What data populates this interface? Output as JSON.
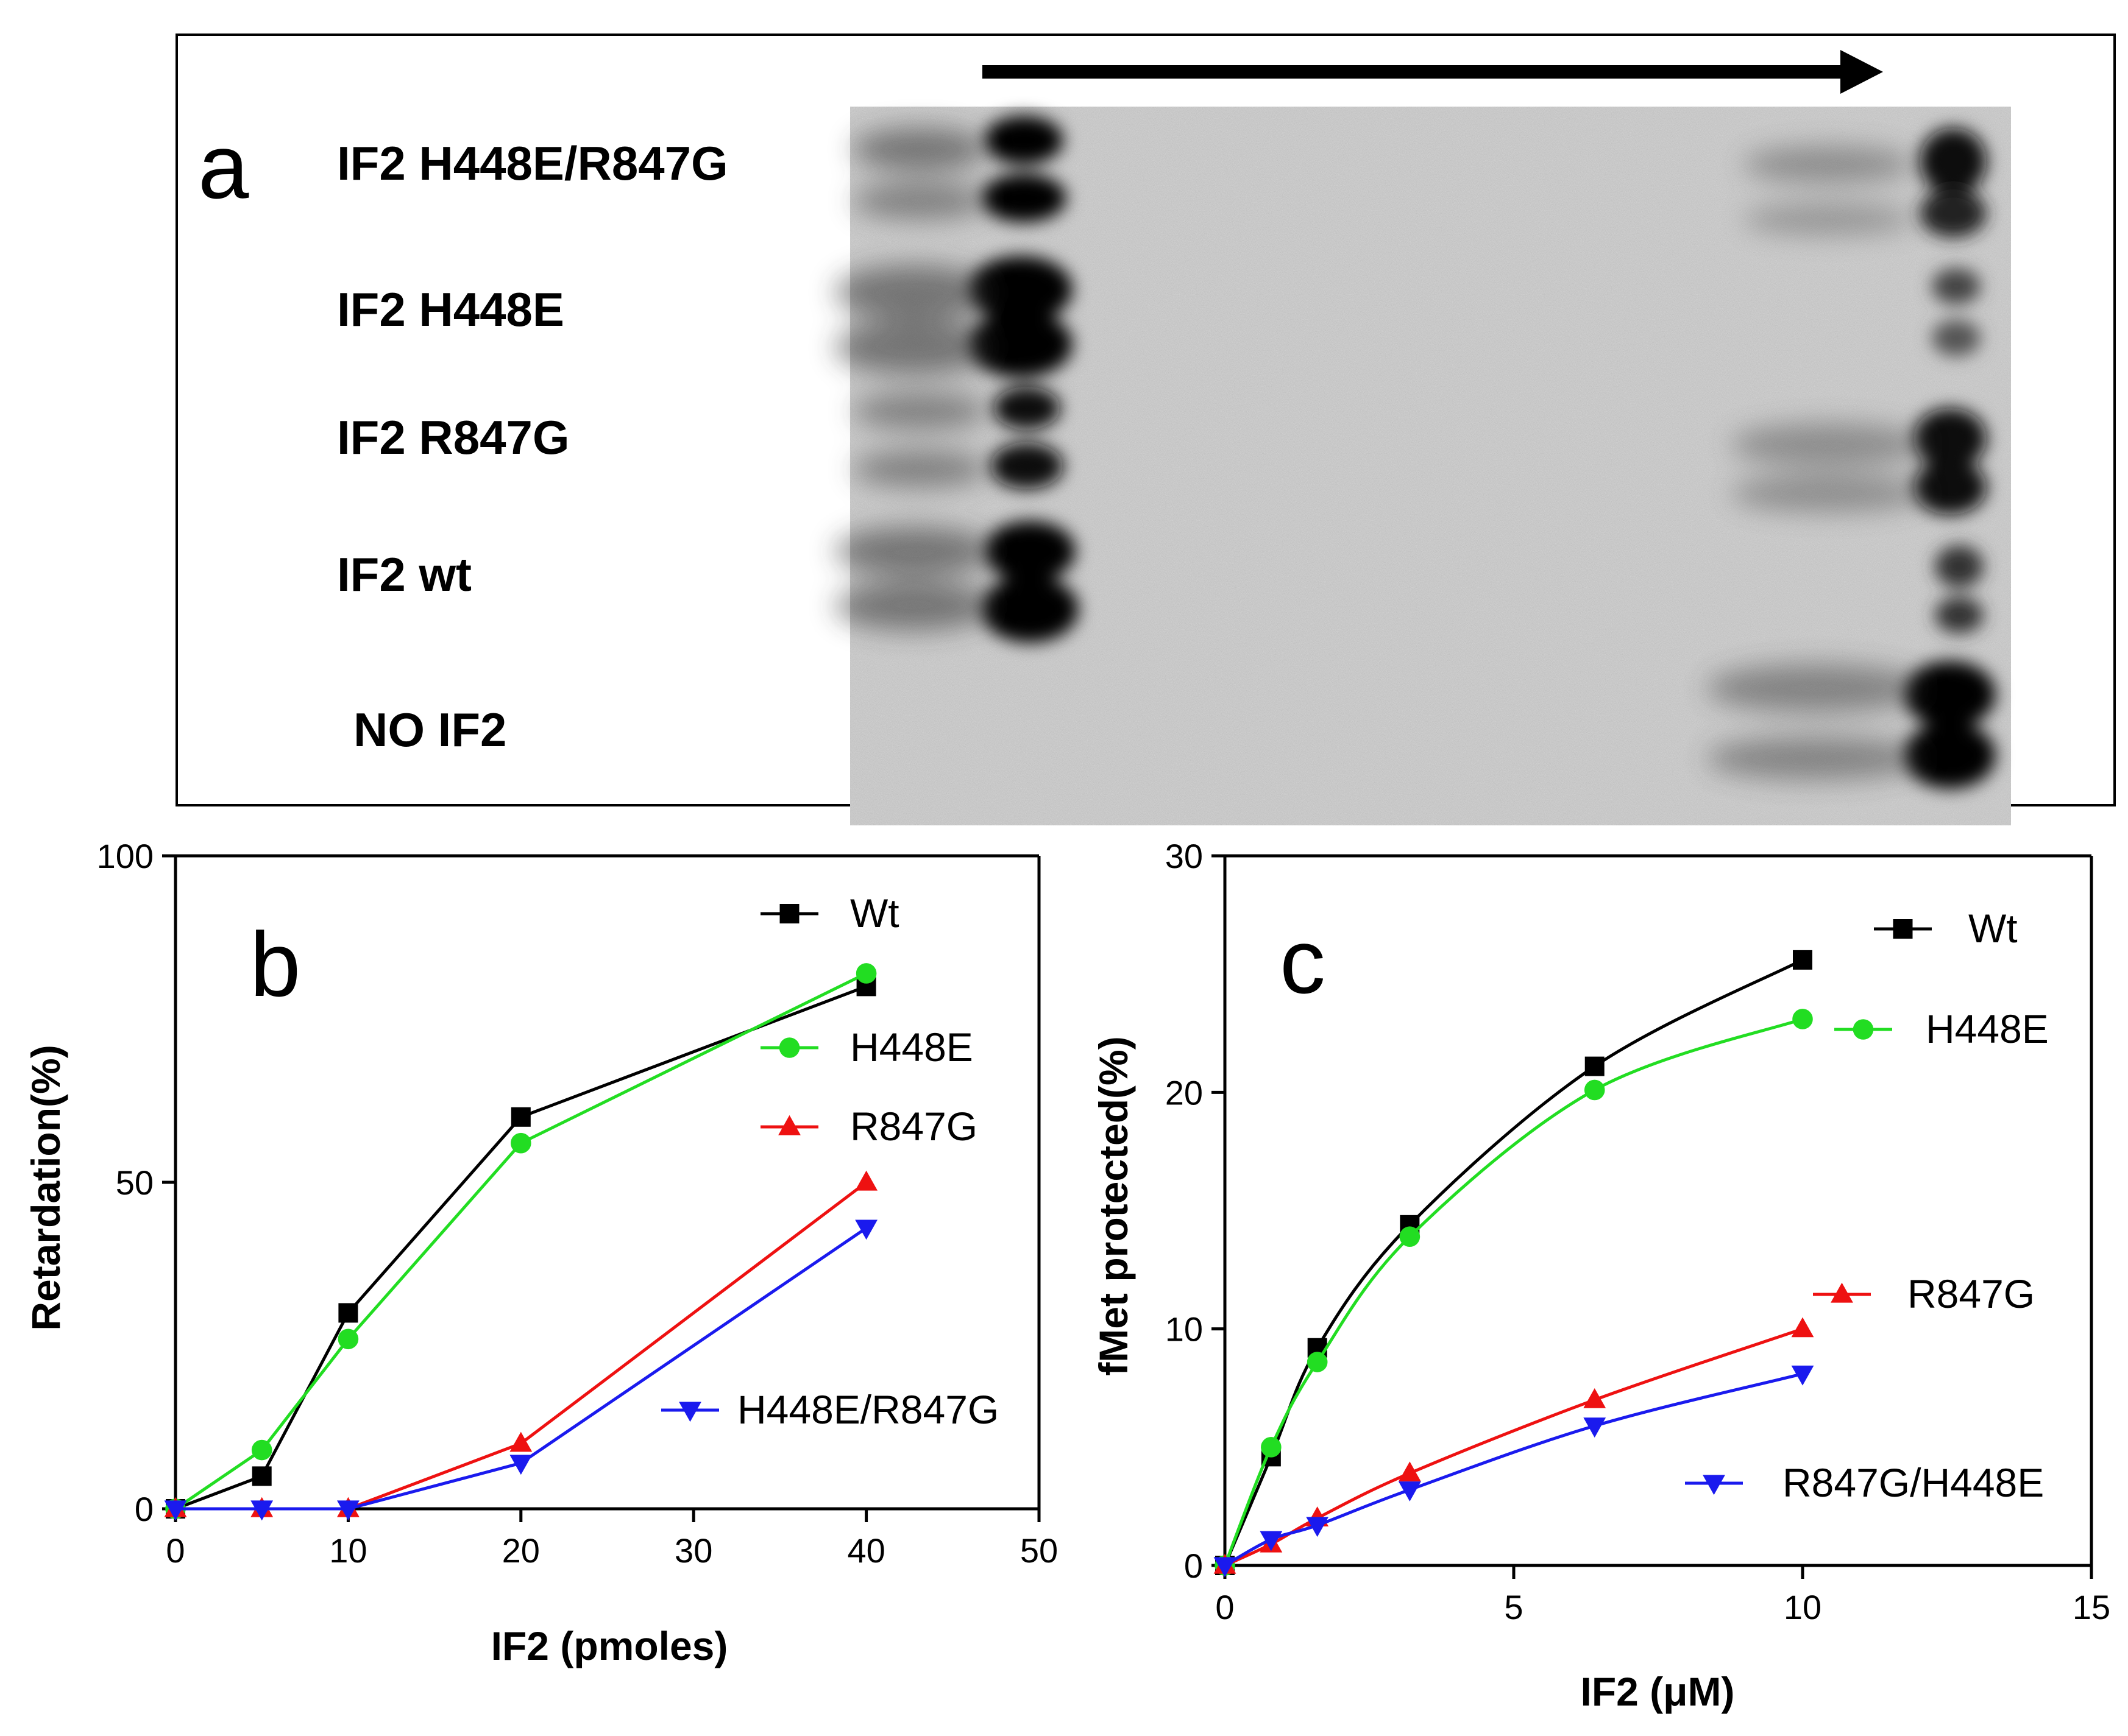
{
  "panel_a": {
    "letter": "a",
    "lanes": [
      "IF2 H448E/R847G",
      "IF2 H448E",
      "IF2 R847G",
      "IF2 wt",
      "NO IF2"
    ]
  },
  "colors": {
    "Wt": "#000000",
    "H448E": "#22dd22",
    "R847G": "#ee1111",
    "double": "#1a1aee"
  },
  "chart_data": [
    {
      "type": "line",
      "panel": "b",
      "xlabel": "IF2 (pmoles)",
      "ylabel": "Retardation(%)",
      "xlim": [
        0,
        50
      ],
      "ylim": [
        0,
        100
      ],
      "xticks": [
        0,
        10,
        20,
        30,
        40,
        50
      ],
      "yticks": [
        0,
        50,
        100
      ],
      "x": [
        0,
        5,
        10,
        20,
        40
      ],
      "series": [
        {
          "name": "Wt",
          "marker": "square",
          "values": [
            0,
            5,
            30,
            60,
            80
          ]
        },
        {
          "name": "H448E",
          "marker": "circle",
          "values": [
            0,
            9,
            26,
            56,
            82
          ]
        },
        {
          "name": "R847G",
          "marker": "triangle-up",
          "values": [
            0,
            0,
            0,
            10,
            50
          ]
        },
        {
          "name": "H448E/R847G",
          "marker": "triangle-down",
          "values": [
            0,
            0,
            0,
            7,
            43
          ]
        }
      ],
      "legend": [
        "Wt",
        "H448E",
        "R847G",
        "H448E/R847G"
      ]
    },
    {
      "type": "line",
      "panel": "c",
      "xlabel": "IF2 (μM)",
      "ylabel": "fMet protected(%)",
      "xlim": [
        0,
        15
      ],
      "ylim": [
        0,
        30
      ],
      "xticks": [
        0,
        5,
        10,
        15
      ],
      "yticks": [
        0,
        10,
        20,
        30
      ],
      "x": [
        0,
        0.8,
        1.6,
        3.2,
        6.4,
        10
      ],
      "series": [
        {
          "name": "Wt",
          "marker": "square",
          "values": [
            0,
            4.6,
            9.2,
            14.4,
            21.1,
            25.6
          ]
        },
        {
          "name": "H448E",
          "marker": "circle",
          "values": [
            0,
            5.0,
            8.6,
            13.9,
            20.1,
            23.1
          ]
        },
        {
          "name": "R847G",
          "marker": "triangle-up",
          "values": [
            0,
            0.9,
            2.0,
            3.9,
            7.0,
            10.0
          ]
        },
        {
          "name": "R847G/H448E",
          "marker": "triangle-down",
          "values": [
            0,
            1.1,
            1.7,
            3.2,
            5.9,
            8.1
          ]
        }
      ],
      "legend": [
        "Wt",
        "H448E",
        "R847G",
        "R847G/H448E"
      ]
    }
  ]
}
